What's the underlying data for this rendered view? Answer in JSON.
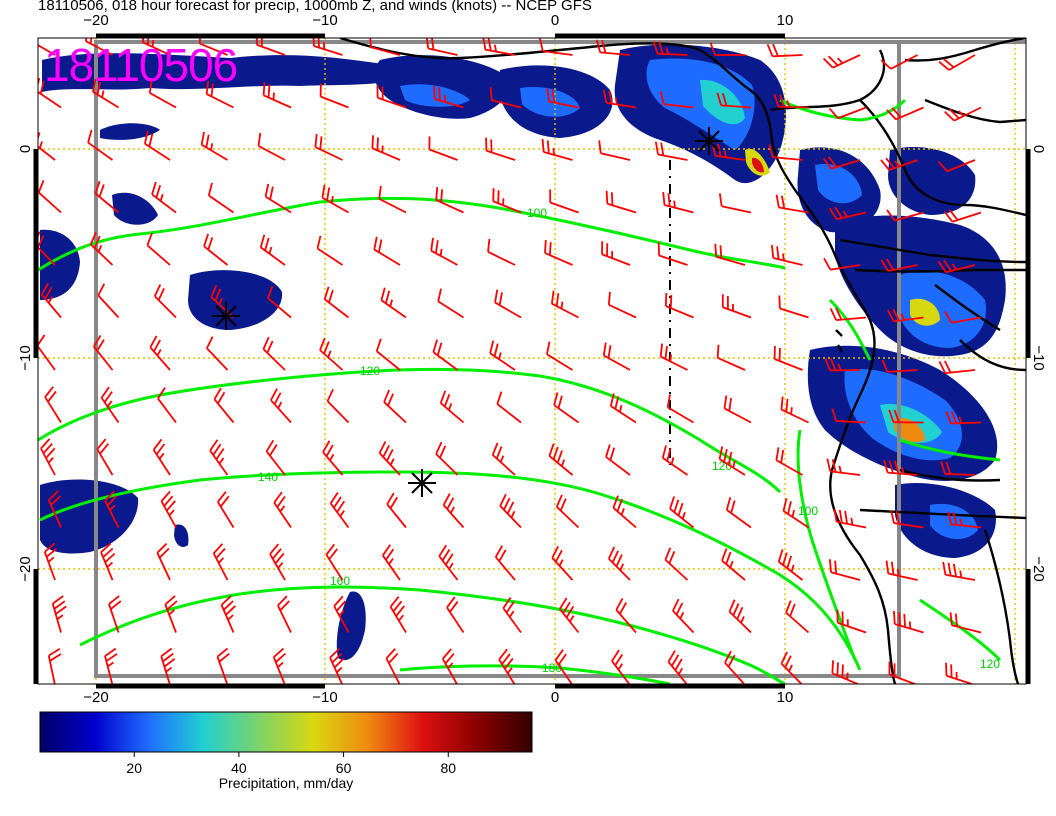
{
  "title": "18110506, 018 hour forecast for precip, 1000mb Z, and winds (knots) -- NCEP GFS",
  "stamp": "18110506",
  "lon_ticks": [
    {
      "value": -20,
      "label": "−20"
    },
    {
      "value": -10,
      "label": "−10"
    },
    {
      "value": 0,
      "label": "0"
    },
    {
      "value": 10,
      "label": "10"
    }
  ],
  "lat_ticks": [
    {
      "value": 0,
      "label": "0"
    },
    {
      "value": -10,
      "label": "−10"
    },
    {
      "value": -20,
      "label": "−20"
    }
  ],
  "contours": [
    {
      "label": "100",
      "level": 100
    },
    {
      "label": "120",
      "level": 120
    },
    {
      "label": "140",
      "level": 140
    },
    {
      "label": "160",
      "level": 160
    },
    {
      "label": "180",
      "level": 180
    }
  ],
  "colorbar": {
    "title": "Precipitation, mm/day",
    "ticks": [
      {
        "value": 20,
        "label": "20"
      },
      {
        "value": 40,
        "label": "40"
      },
      {
        "value": 60,
        "label": "60"
      },
      {
        "value": 80,
        "label": "80"
      }
    ],
    "range": [
      2,
      96
    ],
    "colors": [
      "#000066",
      "#0000cc",
      "#1f6fff",
      "#22d0d0",
      "#7cd36a",
      "#d8d810",
      "#ee8a10",
      "#dd1010",
      "#8a0000",
      "#330000"
    ]
  },
  "colors": {
    "wind_barbs": "#ff0000",
    "height_contours": "#00ee00",
    "grid_lines": "#e6c200",
    "coastlines": "#000000",
    "label_stamp": "#ff00ff"
  }
}
